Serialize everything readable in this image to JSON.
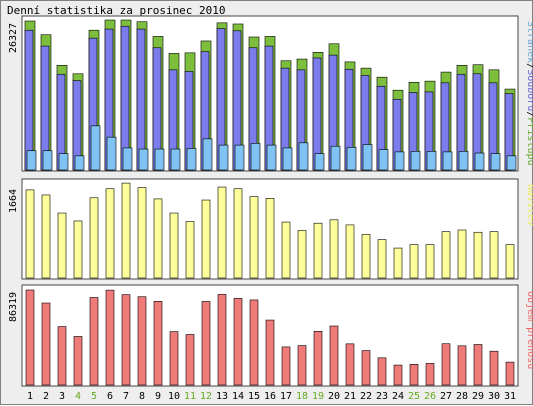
{
  "page": {
    "title": "Denní statistika za prosinec 2010"
  },
  "chart_data": [
    {
      "type": "bar",
      "panel": "hits",
      "ymax_label": "26327",
      "legend": [
        {
          "text": "Stránek",
          "color": "#6ba6d6"
        },
        {
          "text": "/",
          "color": "#000000"
        },
        {
          "text": "Souborů",
          "color": "#6666dd"
        },
        {
          "text": "/",
          "color": "#000000"
        },
        {
          "text": "Přístupů",
          "color": "#66aa33"
        }
      ],
      "categories": [
        "1",
        "2",
        "3",
        "4",
        "5",
        "6",
        "7",
        "8",
        "9",
        "10",
        "11",
        "12",
        "13",
        "14",
        "15",
        "16",
        "17",
        "18",
        "19",
        "20",
        "21",
        "22",
        "23",
        "24",
        "25",
        "26",
        "27",
        "28",
        "29",
        "30",
        "31"
      ],
      "weekend_days": [
        "4",
        "5",
        "11",
        "12",
        "18",
        "19",
        "25",
        "26"
      ],
      "ylim": [
        0,
        26327
      ],
      "series": [
        {
          "name": "Přístupů",
          "color": "#7dbf3c",
          "values": [
            26327,
            23900,
            18500,
            17000,
            24700,
            26500,
            26500,
            26200,
            23600,
            20600,
            20700,
            22800,
            26000,
            25800,
            23500,
            23600,
            19300,
            19600,
            20800,
            22300,
            19100,
            18000,
            16400,
            14100,
            15500,
            15700,
            17300,
            18500,
            18600,
            17700,
            14300
          ]
        },
        {
          "name": "Souborů",
          "color": "#7b7bea",
          "values": [
            24700,
            21900,
            16900,
            15800,
            23300,
            24900,
            25400,
            24900,
            21600,
            17700,
            17400,
            20900,
            25000,
            24600,
            21600,
            21900,
            18000,
            17700,
            19800,
            20300,
            17800,
            16700,
            14800,
            12500,
            13700,
            13800,
            15400,
            16900,
            17000,
            15400,
            13500
          ]
        },
        {
          "name": "Stránek",
          "color": "#7fc3f2",
          "values": [
            3400,
            3400,
            2900,
            2500,
            7800,
            5800,
            3900,
            3700,
            3700,
            3700,
            3800,
            5500,
            4400,
            4400,
            4700,
            4400,
            3900,
            4800,
            2900,
            4200,
            4000,
            4500,
            3600,
            3200,
            3300,
            3300,
            3200,
            3300,
            3000,
            2900,
            2500
          ]
        }
      ]
    },
    {
      "type": "bar",
      "panel": "visits",
      "ymax_label": "1664",
      "legend": [
        {
          "text": "Návštěv",
          "color": "#eeee66"
        }
      ],
      "categories": [
        "1",
        "2",
        "3",
        "4",
        "5",
        "6",
        "7",
        "8",
        "9",
        "10",
        "11",
        "12",
        "13",
        "14",
        "15",
        "16",
        "17",
        "18",
        "19",
        "20",
        "21",
        "22",
        "23",
        "24",
        "25",
        "26",
        "27",
        "28",
        "29",
        "30",
        "31"
      ],
      "ylim": [
        0,
        1664
      ],
      "series": [
        {
          "name": "Návštěv",
          "color": "#ffff99",
          "values": [
            1560,
            1470,
            1150,
            1010,
            1420,
            1580,
            1680,
            1600,
            1400,
            1150,
            1000,
            1380,
            1610,
            1580,
            1440,
            1410,
            990,
            840,
            970,
            1030,
            940,
            770,
            680,
            530,
            590,
            590,
            820,
            850,
            810,
            820,
            590
          ]
        }
      ]
    },
    {
      "type": "bar",
      "panel": "traffic",
      "ymax_label": "86319",
      "legend": [
        {
          "text": "Objem přenosu",
          "color": "#ee6666"
        }
      ],
      "categories": [
        "1",
        "2",
        "3",
        "4",
        "5",
        "6",
        "7",
        "8",
        "9",
        "10",
        "11",
        "12",
        "13",
        "14",
        "15",
        "16",
        "17",
        "18",
        "19",
        "20",
        "21",
        "22",
        "23",
        "24",
        "25",
        "26",
        "27",
        "28",
        "29",
        "30",
        "31"
      ],
      "ylim": [
        0,
        86319
      ],
      "series": [
        {
          "name": "Objem přenosu",
          "color": "#f07a7a",
          "values": [
            86319,
            74500,
            53100,
            44100,
            79500,
            86200,
            82100,
            80200,
            76000,
            48500,
            45900,
            75900,
            82300,
            78700,
            77300,
            59000,
            34600,
            35800,
            48800,
            53600,
            37400,
            31300,
            24700,
            18100,
            18800,
            19600,
            37500,
            35600,
            36800,
            30700,
            20800
          ]
        }
      ]
    }
  ]
}
